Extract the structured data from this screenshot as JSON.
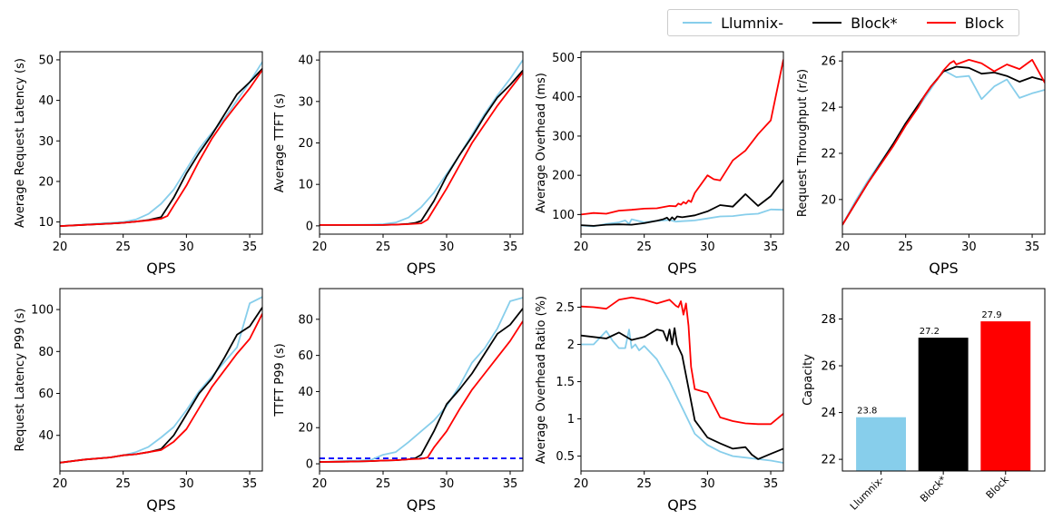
{
  "colors": {
    "llumnix": "#87CEEB",
    "blockstar": "#000000",
    "block": "#FF0000",
    "threshold": "#0000FF"
  },
  "legend": {
    "placement": "top-right",
    "entries": [
      {
        "label": "Llumnix-",
        "color": "#87CEEB"
      },
      {
        "label": "Block*",
        "color": "#000000"
      },
      {
        "label": "Block",
        "color": "#FF0000"
      }
    ]
  },
  "chart_data": [
    {
      "id": "p1",
      "type": "line",
      "xlabel": "QPS",
      "ylabel": "Average Request Latency (s)",
      "xlim": [
        20,
        36
      ],
      "ylim": [
        7,
        52
      ],
      "xticks": [
        20,
        25,
        30,
        35
      ],
      "yticks": [
        10,
        20,
        30,
        40,
        50
      ],
      "series": [
        {
          "name": "Llumnix-",
          "color": "#87CEEB",
          "x": [
            20,
            22,
            24,
            25,
            26,
            27,
            28,
            29,
            30,
            31,
            32,
            33,
            34,
            35,
            36
          ],
          "y": [
            9,
            9.4,
            9.8,
            10,
            10.6,
            12,
            14.5,
            18,
            23,
            28,
            32,
            35.5,
            40,
            44.5,
            49.5
          ]
        },
        {
          "name": "Block*",
          "color": "#000000",
          "x": [
            20,
            22,
            24,
            25,
            26,
            27,
            28,
            29,
            30,
            31,
            32,
            33,
            34,
            35,
            36
          ],
          "y": [
            9,
            9.3,
            9.6,
            9.8,
            10.1,
            10.5,
            11.2,
            16,
            22,
            27,
            31.5,
            36.5,
            41.5,
            44.5,
            47.8
          ]
        },
        {
          "name": "Block",
          "color": "#FF0000",
          "x": [
            20,
            22,
            24,
            25,
            26,
            27,
            28,
            28.5,
            29,
            30,
            31,
            32,
            33,
            34,
            35,
            36
          ],
          "y": [
            9,
            9.3,
            9.6,
            9.8,
            10.1,
            10.4,
            10.8,
            11.5,
            14,
            19,
            25,
            30.5,
            35,
            39,
            43,
            47.5
          ]
        }
      ]
    },
    {
      "id": "p2",
      "type": "line",
      "xlabel": "QPS",
      "ylabel": "Average TTFT (s)",
      "xlim": [
        20,
        36
      ],
      "ylim": [
        -2,
        42
      ],
      "xticks": [
        20,
        25,
        30,
        35
      ],
      "yticks": [
        0,
        10,
        20,
        30,
        40
      ],
      "series": [
        {
          "name": "Llumnix-",
          "color": "#87CEEB",
          "x": [
            20,
            22,
            24,
            25,
            26,
            27,
            28,
            29,
            30,
            31,
            32,
            33,
            34,
            35,
            36
          ],
          "y": [
            0.2,
            0.2,
            0.3,
            0.4,
            0.8,
            2,
            4.5,
            8,
            12.5,
            17,
            22,
            27,
            31.5,
            35.5,
            40
          ]
        },
        {
          "name": "Block*",
          "color": "#000000",
          "x": [
            20,
            22,
            24,
            25,
            26,
            27,
            27.5,
            28,
            29,
            30,
            31,
            32,
            33,
            34,
            35,
            36
          ],
          "y": [
            0.2,
            0.2,
            0.2,
            0.2,
            0.3,
            0.5,
            0.7,
            1.2,
            6,
            12,
            17,
            21.5,
            26.5,
            31,
            34,
            37.5
          ]
        },
        {
          "name": "Block",
          "color": "#FF0000",
          "x": [
            20,
            22,
            24,
            25,
            26,
            27,
            28,
            28.5,
            29,
            30,
            31,
            32,
            33,
            34,
            35,
            36
          ],
          "y": [
            0.2,
            0.2,
            0.2,
            0.2,
            0.3,
            0.4,
            0.6,
            1.5,
            4,
            9,
            14.5,
            20,
            24.5,
            29,
            33,
            37
          ]
        }
      ]
    },
    {
      "id": "p3",
      "type": "line",
      "xlabel": "QPS",
      "ylabel": "Average Overhead (ms)",
      "xlim": [
        20,
        36
      ],
      "ylim": [
        50,
        515
      ],
      "xticks": [
        20,
        25,
        30,
        35
      ],
      "yticks": [
        100,
        200,
        300,
        400,
        500
      ],
      "series": [
        {
          "name": "Llumnix-",
          "color": "#87CEEB",
          "x": [
            20,
            21,
            22,
            23,
            23.5,
            23.8,
            24,
            25,
            26,
            27,
            27.5,
            28,
            29,
            30,
            31,
            32,
            33,
            34,
            35,
            36
          ],
          "y": [
            72,
            70,
            76,
            80,
            85,
            76,
            88,
            80,
            84,
            86,
            82,
            83,
            85,
            90,
            95,
            96,
            100,
            102,
            113,
            112
          ]
        },
        {
          "name": "Block*",
          "color": "#000000",
          "x": [
            20,
            21,
            22,
            23,
            24,
            25,
            26,
            26.5,
            26.8,
            27,
            27.2,
            27.4,
            27.6,
            28,
            29,
            30,
            31,
            32,
            33,
            34,
            35,
            36
          ],
          "y": [
            73,
            71,
            74,
            75,
            74,
            78,
            84,
            88,
            92,
            85,
            93,
            87,
            95,
            93,
            98,
            108,
            124,
            120,
            152,
            122,
            147,
            188
          ]
        },
        {
          "name": "Block",
          "color": "#FF0000",
          "x": [
            20,
            21,
            22,
            23,
            24,
            25,
            26,
            27,
            27.5,
            27.7,
            27.9,
            28.1,
            28.3,
            28.5,
            28.7,
            29,
            30,
            30.5,
            31,
            32,
            33,
            34,
            35,
            36
          ],
          "y": [
            100,
            104,
            102,
            110,
            112,
            115,
            116,
            122,
            121,
            128,
            125,
            132,
            128,
            136,
            132,
            155,
            200,
            190,
            187,
            238,
            263,
            305,
            340,
            495
          ]
        }
      ]
    },
    {
      "id": "p4",
      "type": "line",
      "xlabel": "QPS",
      "ylabel": "Request Throughput (r/s)",
      "xlim": [
        20,
        36
      ],
      "ylim": [
        18.5,
        26.4
      ],
      "xticks": [
        20,
        25,
        30,
        35
      ],
      "yticks": [
        20,
        22,
        24,
        26
      ],
      "series": [
        {
          "name": "Llumnix-",
          "color": "#87CEEB",
          "x": [
            20,
            21,
            22,
            23,
            24,
            25,
            26,
            27,
            28,
            29,
            30,
            31,
            32,
            33,
            34,
            35,
            36
          ],
          "y": [
            18.9,
            19.9,
            20.8,
            21.6,
            22.4,
            23.3,
            24,
            24.8,
            25.6,
            25.3,
            25.35,
            24.35,
            24.9,
            25.2,
            24.4,
            24.6,
            24.75
          ]
        },
        {
          "name": "Block*",
          "color": "#000000",
          "x": [
            20,
            21,
            22,
            23,
            24,
            25,
            26,
            27,
            28,
            29,
            30,
            31,
            32,
            33,
            34,
            35,
            36
          ],
          "y": [
            18.9,
            19.8,
            20.7,
            21.55,
            22.4,
            23.3,
            24.1,
            24.9,
            25.55,
            25.75,
            25.7,
            25.45,
            25.5,
            25.35,
            25.1,
            25.3,
            25.15
          ]
        },
        {
          "name": "Block",
          "color": "#FF0000",
          "x": [
            20,
            21,
            22,
            23,
            24,
            25,
            26,
            26.5,
            27,
            27.5,
            28,
            28.5,
            28.8,
            29,
            30,
            31,
            32,
            33,
            34,
            35,
            36
          ],
          "y": [
            18.9,
            19.8,
            20.7,
            21.5,
            22.3,
            23.2,
            24,
            24.5,
            24.9,
            25.2,
            25.6,
            25.9,
            26.0,
            25.85,
            26.05,
            25.9,
            25.55,
            25.85,
            25.65,
            26.05,
            25.05
          ]
        }
      ]
    },
    {
      "id": "p5",
      "type": "line",
      "xlabel": "QPS",
      "ylabel": "Request Latency P99 (s)",
      "xlim": [
        20,
        36
      ],
      "ylim": [
        23,
        110
      ],
      "xticks": [
        20,
        25,
        30,
        35
      ],
      "yticks": [
        40,
        60,
        80,
        100
      ],
      "series": [
        {
          "name": "Llumnix-",
          "color": "#87CEEB",
          "x": [
            20,
            22,
            24,
            25,
            26,
            27,
            28,
            29,
            30,
            31,
            32,
            33,
            34,
            35,
            36
          ],
          "y": [
            27,
            28.5,
            29.5,
            30.5,
            32,
            34.5,
            39,
            44,
            52,
            61,
            68,
            75,
            82,
            103,
            106
          ]
        },
        {
          "name": "Block*",
          "color": "#000000",
          "x": [
            20,
            22,
            24,
            25,
            26,
            27,
            28,
            29,
            30,
            31,
            32,
            33,
            34,
            35,
            36
          ],
          "y": [
            27,
            28.5,
            29.5,
            30.5,
            31,
            32,
            33.5,
            40,
            50,
            60,
            67,
            77,
            88,
            92,
            101
          ]
        },
        {
          "name": "Block",
          "color": "#FF0000",
          "x": [
            20,
            22,
            24,
            25,
            26,
            27,
            28,
            29,
            30,
            31,
            32,
            33,
            34,
            35,
            36
          ],
          "y": [
            27,
            28.5,
            29.5,
            30.5,
            31,
            32,
            33,
            37,
            43,
            53,
            63,
            71,
            79,
            86,
            98
          ]
        }
      ]
    },
    {
      "id": "p6",
      "type": "line",
      "xlabel": "QPS",
      "ylabel": "TTFT P99 (s)",
      "xlim": [
        20,
        36
      ],
      "ylim": [
        -4,
        97
      ],
      "xticks": [
        20,
        25,
        30,
        35
      ],
      "yticks": [
        0,
        20,
        40,
        60,
        80
      ],
      "series": [
        {
          "name": "Llumnix-",
          "color": "#87CEEB",
          "x": [
            20,
            22,
            24,
            25,
            26,
            27,
            28,
            29,
            30,
            31,
            32,
            33,
            34,
            35,
            36
          ],
          "y": [
            1,
            1.5,
            2,
            5,
            6.5,
            12,
            18,
            24,
            32,
            43,
            56,
            64,
            75,
            90,
            92
          ]
        },
        {
          "name": "Block*",
          "color": "#000000",
          "x": [
            20,
            22,
            24,
            25,
            26,
            27,
            27.5,
            28,
            29,
            30,
            31,
            32,
            33,
            34,
            35,
            36
          ],
          "y": [
            1,
            1.2,
            1.5,
            1.8,
            2,
            2.5,
            3,
            5,
            18,
            33,
            41,
            50,
            61,
            72,
            77,
            86
          ]
        },
        {
          "name": "Block",
          "color": "#FF0000",
          "x": [
            20,
            22,
            24,
            25,
            26,
            27,
            28,
            28.5,
            29,
            30,
            31,
            32,
            33,
            34,
            35,
            36
          ],
          "y": [
            1,
            1.2,
            1.5,
            1.8,
            2,
            2.5,
            2.8,
            3.5,
            9,
            18,
            30,
            41,
            50,
            59,
            68,
            79
          ]
        }
      ],
      "reference_line": {
        "y": 3,
        "color": "#0000FF",
        "style": "dashed"
      }
    },
    {
      "id": "p7",
      "type": "line",
      "xlabel": "QPS",
      "ylabel": "Average Overhead Ratio (%)",
      "xlim": [
        20,
        36
      ],
      "ylim": [
        0.3,
        2.75
      ],
      "xticks": [
        20,
        25,
        30,
        35
      ],
      "yticks": [
        0.5,
        1.0,
        1.5,
        2.0,
        2.5
      ],
      "series": [
        {
          "name": "Llumnix-",
          "color": "#87CEEB",
          "x": [
            20,
            21,
            22,
            22.5,
            23,
            23.5,
            23.8,
            24,
            24.3,
            24.6,
            25,
            26,
            27,
            28,
            29,
            30,
            31,
            32,
            33,
            34,
            35,
            36
          ],
          "y": [
            2.0,
            2.0,
            2.18,
            2.05,
            1.95,
            1.95,
            2.2,
            1.95,
            2.0,
            1.92,
            1.98,
            1.8,
            1.5,
            1.15,
            0.8,
            0.65,
            0.56,
            0.5,
            0.48,
            0.46,
            0.44,
            0.41
          ]
        },
        {
          "name": "Block*",
          "color": "#000000",
          "x": [
            20,
            21,
            22,
            23,
            24,
            25,
            26,
            26.5,
            26.8,
            27,
            27.2,
            27.4,
            27.6,
            28,
            29,
            30,
            31,
            32,
            33,
            33.5,
            34,
            35,
            36
          ],
          "y": [
            2.12,
            2.1,
            2.08,
            2.16,
            2.06,
            2.1,
            2.2,
            2.18,
            2.05,
            2.2,
            2.0,
            2.22,
            2.0,
            1.85,
            0.98,
            0.75,
            0.67,
            0.6,
            0.62,
            0.52,
            0.46,
            0.53,
            0.6
          ]
        },
        {
          "name": "Block",
          "color": "#FF0000",
          "x": [
            20,
            21,
            22,
            23,
            24,
            25,
            26,
            27,
            27.5,
            27.7,
            27.9,
            28.1,
            28.3,
            28.5,
            28.7,
            29,
            30,
            31,
            32,
            33,
            34,
            35,
            36
          ],
          "y": [
            2.51,
            2.5,
            2.48,
            2.6,
            2.63,
            2.6,
            2.55,
            2.6,
            2.52,
            2.5,
            2.58,
            2.4,
            2.55,
            2.25,
            1.7,
            1.4,
            1.35,
            1.02,
            0.97,
            0.94,
            0.93,
            0.93,
            1.07
          ]
        }
      ]
    },
    {
      "id": "p8",
      "type": "bar",
      "ylabel": "Capacity",
      "categories": [
        "Llumnix-",
        "Block*",
        "Block"
      ],
      "values": [
        23.8,
        27.2,
        27.9
      ],
      "value_labels": [
        "23.8",
        "27.2",
        "27.9"
      ],
      "colors": [
        "#87CEEB",
        "#000000",
        "#FF0000"
      ],
      "ylim": [
        21.5,
        29.3
      ],
      "yticks": [
        22,
        24,
        26,
        28
      ]
    }
  ]
}
